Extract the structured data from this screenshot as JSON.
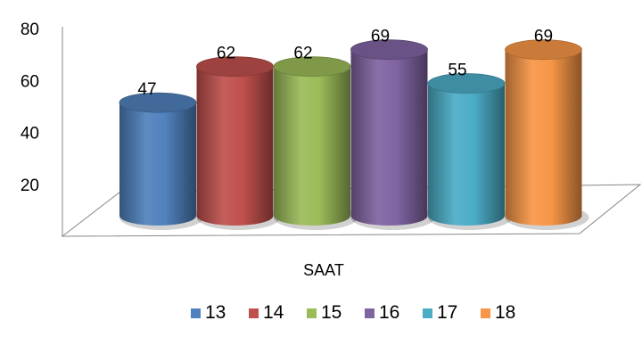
{
  "chart_data": {
    "type": "bar",
    "style": "3d-cylinder",
    "title": "",
    "xlabel": "SAAT",
    "ylabel": "",
    "ylim": [
      0,
      80
    ],
    "yticks": [
      20,
      40,
      60,
      80
    ],
    "grid": false,
    "legend_position": "bottom",
    "categories": [
      "SAAT"
    ],
    "series": [
      {
        "name": "13",
        "values": [
          47
        ],
        "color": "#4F81BD"
      },
      {
        "name": "14",
        "values": [
          62
        ],
        "color": "#C0504D"
      },
      {
        "name": "15",
        "values": [
          62
        ],
        "color": "#9BBB59"
      },
      {
        "name": "16",
        "values": [
          69
        ],
        "color": "#8064A2"
      },
      {
        "name": "17",
        "values": [
          55
        ],
        "color": "#4BACC6"
      },
      {
        "name": "18",
        "values": [
          69
        ],
        "color": "#F79646"
      }
    ]
  }
}
